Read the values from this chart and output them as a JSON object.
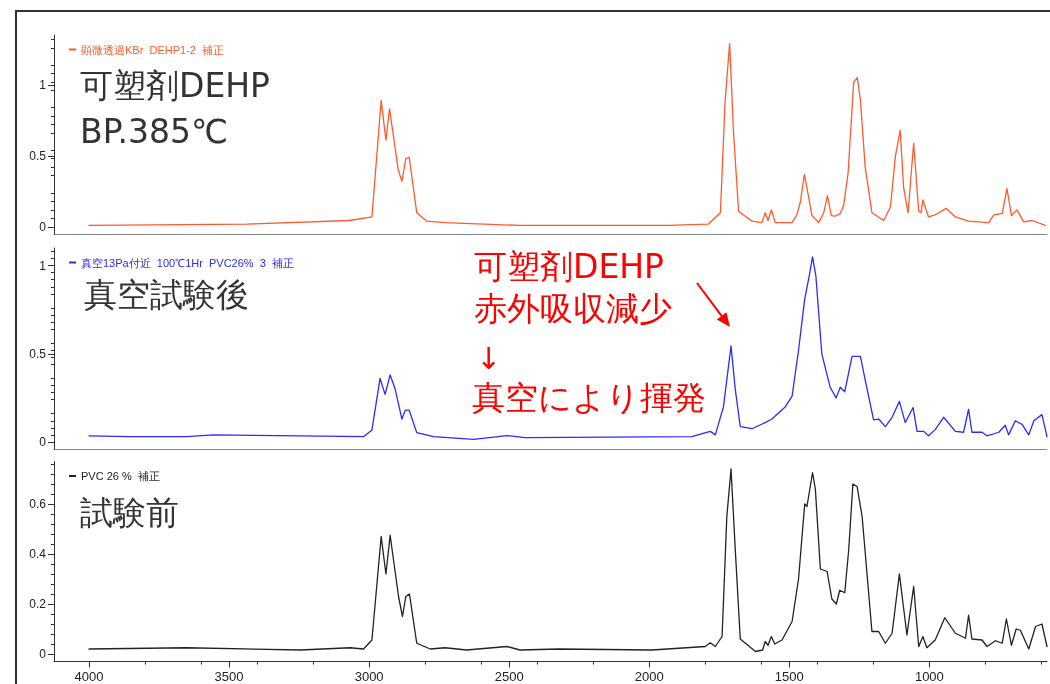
{
  "chart_data": [
    {
      "type": "line",
      "x": [
        4000,
        3436,
        3071,
        2990,
        2957,
        2940,
        2927,
        2896,
        2883,
        2869,
        2857,
        2830,
        2794,
        2729,
        2461,
        2443,
        1932,
        1789,
        1746,
        1729,
        1713,
        1699,
        1681,
        1633,
        1598,
        1586,
        1576,
        1564,
        1550,
        1490,
        1473,
        1461,
        1446,
        1433,
        1419,
        1395,
        1377,
        1364,
        1350,
        1336,
        1318,
        1306,
        1290,
        1270,
        1257,
        1246,
        1229,
        1205,
        1163,
        1139,
        1121,
        1104,
        1092,
        1076,
        1056,
        1038,
        1030,
        1023,
        1003,
        979,
        940,
        907,
        860,
        788,
        770,
        740,
        723,
        707,
        687,
        663,
        633,
        586
      ],
      "series": [
        {
          "name": "顕微透過KBr  DEHP1-2  補正",
          "color": "#ff5a2e",
          "values": [
            0.01,
            0.02,
            0.045,
            0.07,
            0.89,
            0.61,
            0.83,
            0.4,
            0.32,
            0.48,
            0.49,
            0.1,
            0.04,
            0.03,
            0.01,
            0.01,
            0.01,
            0.02,
            0.1,
            0.89,
            1.29,
            0.66,
            0.11,
            0.04,
            0.03,
            0.1,
            0.045,
            0.12,
            0.03,
            0.03,
            0.085,
            0.17,
            0.37,
            0.23,
            0.08,
            0.03,
            0.1,
            0.22,
            0.08,
            0.075,
            0.095,
            0.15,
            0.38,
            1.02,
            1.05,
            0.89,
            0.42,
            0.1,
            0.045,
            0.14,
            0.5,
            0.68,
            0.28,
            0.1,
            0.59,
            0.11,
            0.1,
            0.19,
            0.07,
            0.085,
            0.13,
            0.07,
            0.04,
            0.03,
            0.085,
            0.095,
            0.27,
            0.08,
            0.12,
            0.035,
            0.045,
            0.01
          ]
        }
      ],
      "xlim": [
        4125,
        580
      ],
      "xticks": [
        4000,
        3500,
        3000,
        2500,
        2000,
        1500,
        1000
      ],
      "ylim": [
        -0.05,
        1.35
      ],
      "yticks": [
        0,
        0.5,
        1
      ],
      "tick_labels": "y",
      "legend": "top left",
      "marker": "none",
      "grid": false,
      "annotations": [
        "可塑剤DEHP\nBP.385℃"
      ]
    },
    {
      "type": "line",
      "x": [
        4000,
        3854,
        3651,
        3556,
        3246,
        3020,
        2990,
        2961,
        2943,
        2925,
        2907,
        2883,
        2871,
        2857,
        2830,
        2770,
        2627,
        2508,
        2443,
        1848,
        1782,
        1764,
        1735,
        1708,
        1693,
        1675,
        1633,
        1586,
        1562,
        1514,
        1490,
        1467,
        1445,
        1429,
        1417,
        1405,
        1384,
        1354,
        1333,
        1318,
        1302,
        1276,
        1246,
        1229,
        1199,
        1181,
        1157,
        1133,
        1107,
        1086,
        1058,
        1044,
        1020,
        1003,
        979,
        949,
        907,
        878,
        860,
        848,
        812,
        794,
        752,
        729,
        717,
        693,
        669,
        645,
        627,
        598,
        580
      ],
      "series": [
        {
          "name": "真空13Pa付近  100℃1Hr  PVC26%  3  補正",
          "color": "#2b2bff",
          "values": [
            0.035,
            0.03,
            0.03,
            0.04,
            0.035,
            0.03,
            0.068,
            0.36,
            0.27,
            0.38,
            0.3,
            0.13,
            0.18,
            0.18,
            0.053,
            0.03,
            0.015,
            0.036,
            0.025,
            0.03,
            0.06,
            0.04,
            0.2,
            0.545,
            0.3,
            0.087,
            0.075,
            0.11,
            0.13,
            0.2,
            0.26,
            0.52,
            0.81,
            0.94,
            1.05,
            0.94,
            0.5,
            0.31,
            0.25,
            0.31,
            0.285,
            0.485,
            0.485,
            0.35,
            0.125,
            0.13,
            0.087,
            0.14,
            0.23,
            0.11,
            0.195,
            0.06,
            0.06,
            0.035,
            0.07,
            0.14,
            0.06,
            0.055,
            0.185,
            0.055,
            0.055,
            0.035,
            0.055,
            0.095,
            0.04,
            0.12,
            0.1,
            0.04,
            0.12,
            0.155,
            0.03
          ]
        }
      ],
      "xlim": [
        4125,
        580
      ],
      "xticks": [
        4000,
        3500,
        3000,
        2500,
        2000,
        1500,
        1000
      ],
      "ylim": [
        -0.04,
        1.1
      ],
      "yticks": [
        0,
        0.5,
        1
      ],
      "tick_labels": "y",
      "legend": "top left",
      "marker": "none",
      "grid": false,
      "annotations": [
        "真空試験後",
        {
          "text": "可塑剤DEHP\n赤外吸収減少",
          "x": 1708,
          "y": 0.545
        },
        "↓",
        "真空により揮発"
      ]
    },
    {
      "type": "line",
      "x": [
        4000,
        3651,
        3246,
        3068,
        3020,
        2990,
        2957,
        2940,
        2925,
        2895,
        2881,
        2869,
        2856,
        2830,
        2782,
        2729,
        2652,
        2508,
        2461,
        2324,
        1990,
        1800,
        1782,
        1764,
        1740,
        1723,
        1708,
        1693,
        1675,
        1621,
        1595,
        1586,
        1576,
        1564,
        1552,
        1526,
        1490,
        1467,
        1445,
        1437,
        1417,
        1407,
        1389,
        1365,
        1348,
        1332,
        1320,
        1302,
        1288,
        1273,
        1258,
        1240,
        1205,
        1181,
        1157,
        1133,
        1107,
        1080,
        1056,
        1038,
        1023,
        1009,
        979,
        945,
        907,
        871,
        860,
        848,
        812,
        794,
        764,
        740,
        725,
        707,
        690,
        675,
        645,
        621,
        598,
        580
      ],
      "series": [
        {
          "name": "PVC 26 %  補正",
          "color": "#222222",
          "values": [
            0.02,
            0.025,
            0.016,
            0.025,
            0.02,
            0.056,
            0.47,
            0.32,
            0.475,
            0.23,
            0.15,
            0.23,
            0.24,
            0.043,
            0.02,
            0.025,
            0.016,
            0.03,
            0.016,
            0.02,
            0.016,
            0.03,
            0.045,
            0.03,
            0.07,
            0.55,
            0.74,
            0.42,
            0.06,
            0.01,
            0.016,
            0.05,
            0.035,
            0.07,
            0.04,
            0.056,
            0.13,
            0.3,
            0.6,
            0.59,
            0.725,
            0.66,
            0.34,
            0.33,
            0.22,
            0.2,
            0.255,
            0.245,
            0.415,
            0.68,
            0.67,
            0.55,
            0.09,
            0.09,
            0.043,
            0.083,
            0.32,
            0.076,
            0.27,
            0.03,
            0.07,
            0.025,
            0.056,
            0.145,
            0.083,
            0.063,
            0.155,
            0.06,
            0.056,
            0.03,
            0.053,
            0.043,
            0.14,
            0.035,
            0.1,
            0.095,
            0.02,
            0.11,
            0.12,
            0.03
          ]
        }
      ],
      "xlim": [
        4125,
        580
      ],
      "xticks": [
        4000,
        3500,
        3000,
        2500,
        2000,
        1500,
        1000
      ],
      "ylim": [
        -0.03,
        0.77
      ],
      "yticks": [
        0,
        0.2,
        0.4,
        0.6
      ],
      "legend": "top left",
      "marker": "none",
      "grid": false,
      "annotations": [
        "試験前"
      ]
    }
  ]
}
